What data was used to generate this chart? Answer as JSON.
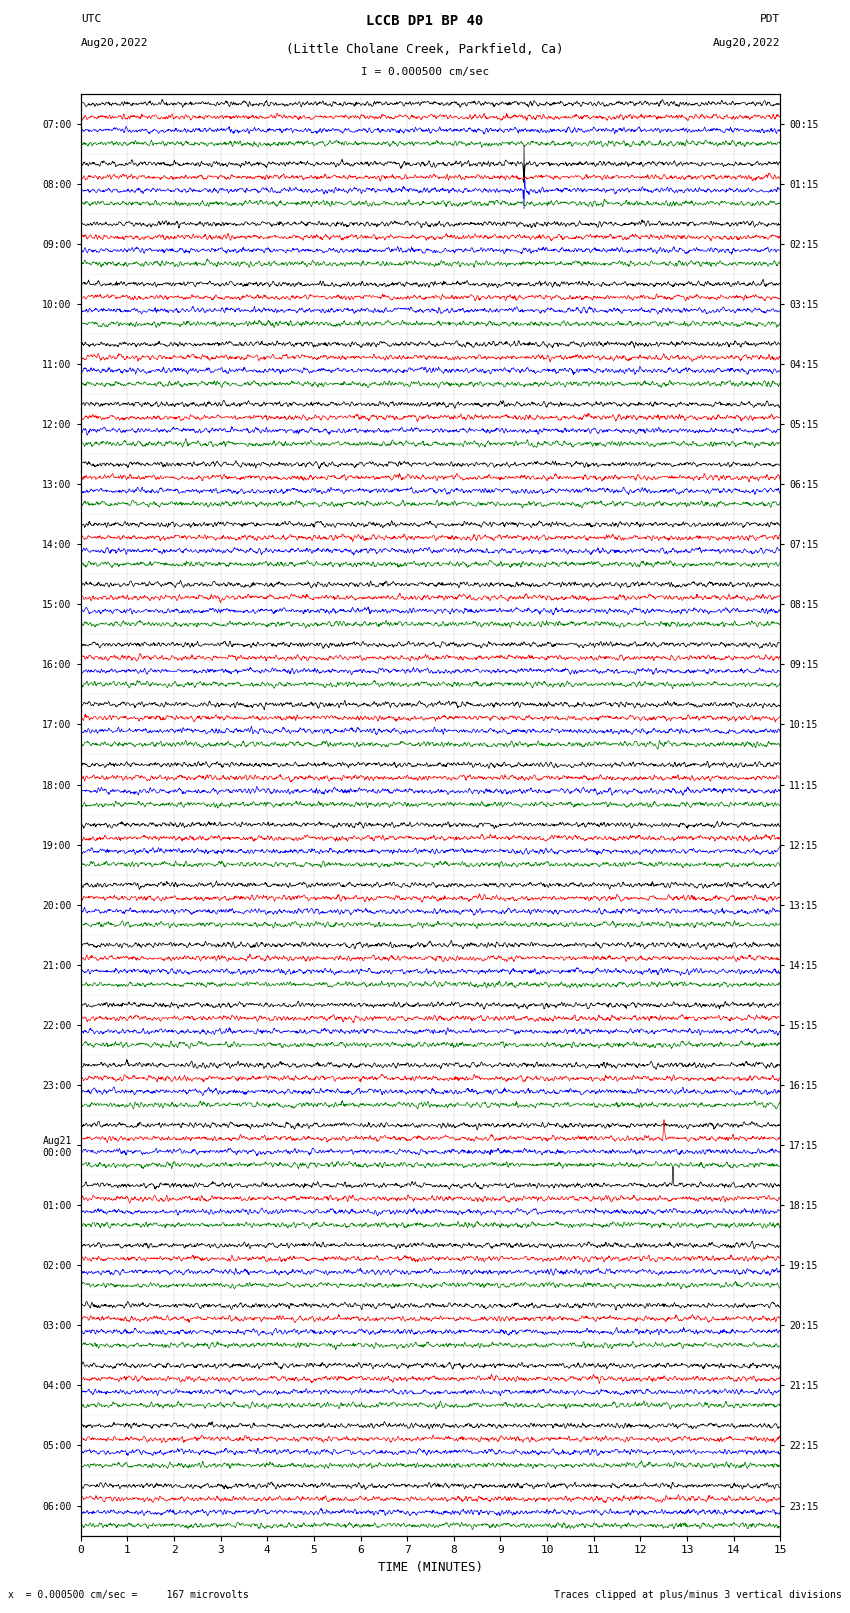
{
  "title_line1": "LCCB DP1 BP 40",
  "title_line2": "(Little Cholane Creek, Parkfield, Ca)",
  "scale_label": "I = 0.000500 cm/sec",
  "left_header": "UTC",
  "left_date": "Aug20,2022",
  "right_header": "PDT",
  "right_date": "Aug20,2022",
  "xlabel": "TIME (MINUTES)",
  "footer_left": "x  = 0.000500 cm/sec =     167 microvolts",
  "footer_right": "Traces clipped at plus/minus 3 vertical divisions",
  "num_rows": 24,
  "traces_per_row": 4,
  "colors": [
    "black",
    "red",
    "blue",
    "green"
  ],
  "fig_width": 8.5,
  "fig_height": 16.13,
  "bg_color": "white",
  "left_ytick_labels": [
    "07:00",
    "08:00",
    "09:00",
    "10:00",
    "11:00",
    "12:00",
    "13:00",
    "14:00",
    "15:00",
    "16:00",
    "17:00",
    "18:00",
    "19:00",
    "20:00",
    "21:00",
    "22:00",
    "23:00",
    "Aug21\n00:00",
    "01:00",
    "02:00",
    "03:00",
    "04:00",
    "05:00",
    "06:00"
  ],
  "right_ytick_labels": [
    "00:15",
    "01:15",
    "02:15",
    "03:15",
    "04:15",
    "05:15",
    "06:15",
    "07:15",
    "08:15",
    "09:15",
    "10:15",
    "11:15",
    "12:15",
    "13:15",
    "14:15",
    "15:15",
    "16:15",
    "17:15",
    "18:15",
    "19:15",
    "20:15",
    "21:15",
    "22:15",
    "23:15"
  ]
}
